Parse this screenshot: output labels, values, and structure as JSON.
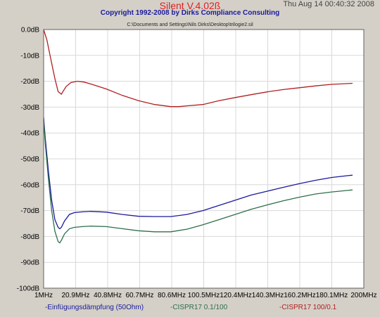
{
  "window": {
    "title": "Silent V.4.02ß",
    "copyright": "Copyright 1992-2008 by Dirks Compliance Consulting",
    "timestamp": "Thu Aug 14 00:40:32 2008",
    "file_path": "C:\\Documents and Settings\\Nils Dirks\\Desktop\\trilogie2.sil"
  },
  "colors": {
    "title": "#e02020",
    "copyright": "#1a1a9c",
    "plot_bg": "#ffffff",
    "grid": "#d8d8d8",
    "frame": "#606060"
  },
  "chart_data": {
    "type": "line",
    "title": "",
    "xlabel": "",
    "ylabel": "",
    "xlim": [
      1,
      200
    ],
    "ylim": [
      -100,
      0
    ],
    "grid": true,
    "legend_placement": "bottom",
    "x_ticks": [
      1,
      20.9,
      40.8,
      60.7,
      80.6,
      100.5,
      120.4,
      140.3,
      160.2,
      180.1,
      200
    ],
    "x_tick_labels": [
      "1MHz",
      "20.9MHz",
      "40.8MHz",
      "60.7MHz",
      "80.6MHz",
      "100.5MHz",
      "120.4MHz",
      "140.3MHz",
      "160.2MHz",
      "180.1MHz",
      "200MHz"
    ],
    "y_ticks": [
      0,
      -10,
      -20,
      -30,
      -40,
      -50,
      -60,
      -70,
      -80,
      -90,
      -100
    ],
    "y_tick_labels": [
      "0.0dB",
      "-10dB",
      "-20dB",
      "-30dB",
      "-40dB",
      "-50dB",
      "-60dB",
      "-70dB",
      "-80dB",
      "-90dB",
      "-100dB"
    ],
    "series": [
      {
        "name": "-CISPR17 100/0.1",
        "color": "#b02020",
        "x": [
          1,
          3,
          5,
          8,
          10,
          12,
          13,
          15,
          18,
          22,
          26,
          30,
          40,
          50,
          60,
          70,
          80,
          85,
          90,
          100,
          110,
          120,
          130,
          140,
          150,
          160,
          170,
          180,
          190,
          193
        ],
        "y": [
          0,
          -4,
          -10,
          -19,
          -24,
          -25,
          -24,
          -22,
          -20.5,
          -20,
          -20.3,
          -21,
          -23,
          -25.5,
          -27.5,
          -29,
          -29.8,
          -29.8,
          -29.5,
          -29,
          -27.5,
          -26.3,
          -25.2,
          -24.1,
          -23.2,
          -22.5,
          -21.8,
          -21.2,
          -20.9,
          -20.8
        ]
      },
      {
        "name": "-Einfügungsdämpfung (50Ohm)",
        "color": "#1a1a9c",
        "x": [
          1,
          2,
          4,
          6,
          8,
          10,
          11,
          12,
          14,
          17,
          20,
          25,
          30,
          40,
          50,
          60,
          70,
          80,
          90,
          100,
          110,
          120,
          130,
          140,
          150,
          160,
          170,
          180,
          190,
          193
        ],
        "y": [
          -34,
          -42,
          -55,
          -66,
          -73.5,
          -76.5,
          -77,
          -76.5,
          -74,
          -71.5,
          -70.8,
          -70.5,
          -70.3,
          -70.6,
          -71.5,
          -72.2,
          -72.3,
          -72.3,
          -71.5,
          -70,
          -68,
          -66,
          -64,
          -62.5,
          -61,
          -59.6,
          -58.3,
          -57.2,
          -56.5,
          -56.3
        ]
      },
      {
        "name": "-CISPR17 0.1/100",
        "color": "#2e6e4a",
        "x": [
          1,
          2,
          4,
          6,
          8,
          10,
          11,
          12,
          14,
          17,
          20,
          25,
          30,
          40,
          50,
          60,
          70,
          80,
          90,
          100,
          110,
          120,
          130,
          140,
          150,
          160,
          170,
          180,
          190,
          193
        ],
        "y": [
          -35,
          -44,
          -58,
          -70,
          -78,
          -82,
          -82.5,
          -81.5,
          -79,
          -77,
          -76.5,
          -76.2,
          -76,
          -76.2,
          -77,
          -77.8,
          -78.2,
          -78.2,
          -77.2,
          -75.5,
          -73.5,
          -71.5,
          -69.5,
          -67.8,
          -66.2,
          -64.8,
          -63.6,
          -62.8,
          -62.2,
          -62
        ]
      }
    ]
  }
}
